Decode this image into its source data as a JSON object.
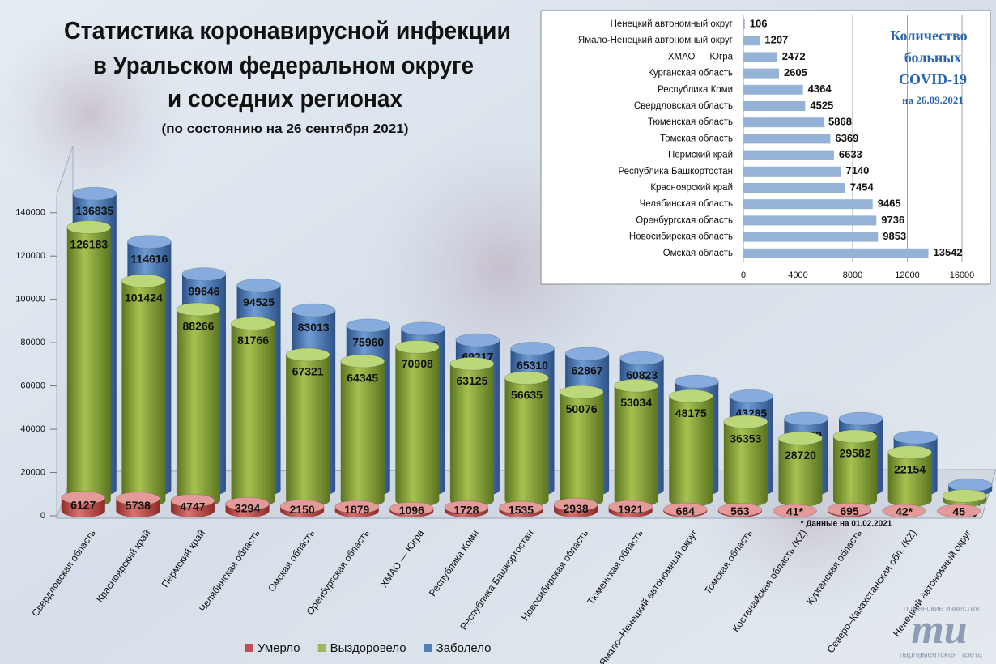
{
  "chart_data": [
    {
      "type": "bar3d",
      "title": [
        "Статистика коронавирусной инфекции",
        "в Уральском федеральном округе",
        "и соседних регионах"
      ],
      "subtitle": "(по состоянию  на 26 сентября 2021)",
      "annotation": "* Данные на 01.02.2021",
      "categories": [
        "Свердловская область",
        "Красноярский край",
        "Пермский край",
        "Челябинская область",
        "Омская область",
        "Оренбургская область",
        "ХМАО — Югра",
        "Республика Коми",
        "Республика Башкортостан",
        "Новосибирская область",
        "Тюменская область",
        "Ямало–Ненецкий автономный округ",
        "Томская область",
        "Костанайская область (KZ)",
        "Курганская область",
        "Северо–Казахстанская обл. (KZ)",
        "Ненецкий автономный округ"
      ],
      "series": [
        {
          "name": "Умерло",
          "color": "#c0504d",
          "values": [
            6127,
            5738,
            4747,
            3294,
            2150,
            1879,
            1096,
            1728,
            1535,
            2938,
            1921,
            684,
            563,
            41,
            695,
            42,
            45
          ],
          "value_labels": [
            "6127",
            "5738",
            "4747",
            "3294",
            "2150",
            "1879",
            "1096",
            "1728",
            "1535",
            "2938",
            "1921",
            "684",
            "563",
            "41*",
            "695",
            "42*",
            "45"
          ]
        },
        {
          "name": "Выздоровело",
          "color": "#9bbb59",
          "values": [
            126183,
            101424,
            88266,
            81766,
            67321,
            64345,
            70908,
            63125,
            56635,
            50076,
            53034,
            48175,
            36353,
            28720,
            29582,
            22154,
            2096
          ]
        },
        {
          "name": "Заболело",
          "color": "#4f81bd",
          "values": [
            136835,
            114616,
            99646,
            94525,
            83013,
            75960,
            74476,
            69217,
            65310,
            62867,
            60823,
            50066,
            43285,
            32909,
            32882,
            24266,
            2247
          ]
        }
      ],
      "ylim": [
        0,
        150000
      ],
      "yticks": [
        0,
        20000,
        40000,
        60000,
        80000,
        100000,
        120000,
        140000
      ],
      "legend": "bottom"
    },
    {
      "type": "barh",
      "title": [
        "Количество",
        "больных",
        "COVID-19"
      ],
      "subtitle": "на 26.09.2021",
      "categories": [
        "Ненецкий автономный округ",
        "Ямало-Ненецкий автономный округ",
        "ХМАО — Югра",
        "Курганская область",
        "Республика Коми",
        "Свердловская область",
        "Тюменская область",
        "Томская область",
        "Пермский край",
        "Республика Башкортостан",
        "Красноярский край",
        "Челябинская область",
        "Оренбургская область",
        "Новосибирская область",
        "Омская область"
      ],
      "values": [
        106,
        1207,
        2472,
        2605,
        4364,
        4525,
        5868,
        6369,
        6633,
        7140,
        7454,
        9465,
        9736,
        9853,
        13542
      ],
      "color": "#95b3d7",
      "xlim": [
        0,
        16000
      ],
      "xticks": [
        0,
        4000,
        8000,
        12000,
        16000
      ],
      "grid": true
    }
  ],
  "logo": {
    "top": "тюменские известия",
    "mark": "mu",
    "bottom": "парламентская газета"
  }
}
